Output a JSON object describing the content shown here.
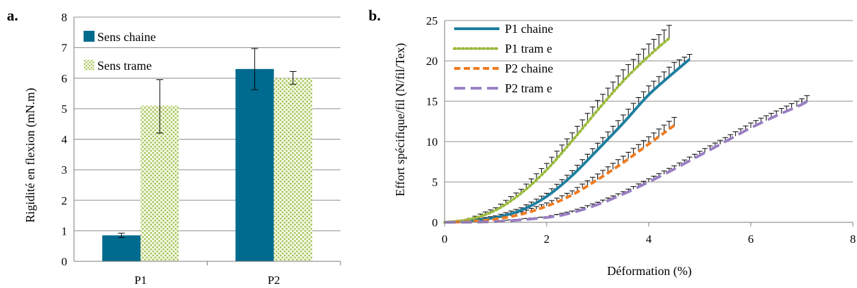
{
  "chart_data": [
    {
      "panel_label": "a.",
      "type": "bar",
      "ylabel": "Rigidité  en flexion  (mN.m)",
      "xlabel": "",
      "ylim": [
        0,
        8
      ],
      "yticks": [
        "0",
        "1",
        "2",
        "3",
        "4",
        "5",
        "6",
        "7",
        "8"
      ],
      "categories": [
        "P1",
        "P2"
      ],
      "grid": true,
      "legend": "top-left",
      "series": [
        {
          "name": "Sens chaine",
          "color": "#006B8E",
          "pattern": "solid",
          "values": [
            0.85,
            6.3
          ],
          "error_low": [
            0.78,
            5.62
          ],
          "error_high": [
            0.92,
            6.97
          ]
        },
        {
          "name": "Sens trame",
          "color": "#9BBB3B",
          "pattern": "dots",
          "values": [
            5.1,
            6.0
          ],
          "error_low": [
            4.2,
            5.8
          ],
          "error_high": [
            5.95,
            6.22
          ]
        }
      ]
    },
    {
      "panel_label": "b.",
      "type": "line",
      "xlabel": "Déformation (%)",
      "ylabel": "Effort  spécifique/fil (N/fil/Tex)",
      "xlim": [
        0,
        8
      ],
      "ylim": [
        0,
        25
      ],
      "xticks": [
        "0",
        "2",
        "4",
        "6",
        "8"
      ],
      "yticks": [
        "0",
        "5",
        "10",
        "15",
        "20",
        "25"
      ],
      "grid": true,
      "legend": "top-left",
      "series": [
        {
          "name": "P1 chaine",
          "color": "#1E7FA0",
          "dash": "solid",
          "x": [
            0,
            0.5,
            1,
            1.5,
            2,
            2.5,
            3,
            3.5,
            4,
            4.5,
            4.8
          ],
          "y": [
            0,
            0.2,
            0.6,
            1.5,
            3.2,
            5.8,
            9,
            12.3,
            15.8,
            18.6,
            20.2
          ],
          "err": [
            0,
            0.1,
            0.2,
            0.3,
            0.4,
            0.6,
            0.8,
            1,
            1.1,
            1.2,
            0.6
          ]
        },
        {
          "name": "P1 tram e",
          "color": "#9BBB3B",
          "dash": "dotted",
          "x": [
            0,
            0.5,
            1,
            1.5,
            2,
            2.5,
            3,
            3.5,
            4,
            4.4
          ],
          "y": [
            0,
            0.4,
            1.5,
            3.6,
            6.5,
            10.1,
            13.9,
            17.5,
            20.6,
            22.8
          ],
          "err": [
            0,
            0.1,
            0.3,
            0.5,
            0.8,
            1,
            1.2,
            1.4,
            1.5,
            1.6
          ]
        },
        {
          "name": "P2 chaine",
          "color": "#F07A1E",
          "dash": "dashed",
          "x": [
            0,
            0.5,
            1,
            1.5,
            2,
            2.5,
            3,
            3.5,
            4,
            4.5
          ],
          "y": [
            0,
            0.1,
            0.4,
            1.0,
            2.0,
            3.4,
            5.3,
            7.4,
            9.7,
            12.0
          ],
          "err": [
            0,
            0.1,
            0.2,
            0.3,
            0.4,
            0.5,
            0.7,
            0.8,
            0.9,
            1.0
          ]
        },
        {
          "name": "P2 tram e",
          "color": "#9A7FC4",
          "dash": "longdash",
          "x": [
            0,
            1,
            2,
            2.5,
            3,
            3.5,
            4,
            4.5,
            5,
            5.5,
            6,
            6.5,
            7,
            7.1
          ],
          "y": [
            0,
            0.1,
            0.6,
            1.2,
            2.2,
            3.5,
            5.0,
            6.6,
            8.3,
            10.0,
            11.7,
            13.2,
            14.6,
            15.0
          ],
          "err": [
            0,
            0.05,
            0.1,
            0.2,
            0.3,
            0.3,
            0.4,
            0.4,
            0.5,
            0.5,
            0.6,
            0.6,
            0.7,
            0.7
          ]
        }
      ]
    }
  ]
}
